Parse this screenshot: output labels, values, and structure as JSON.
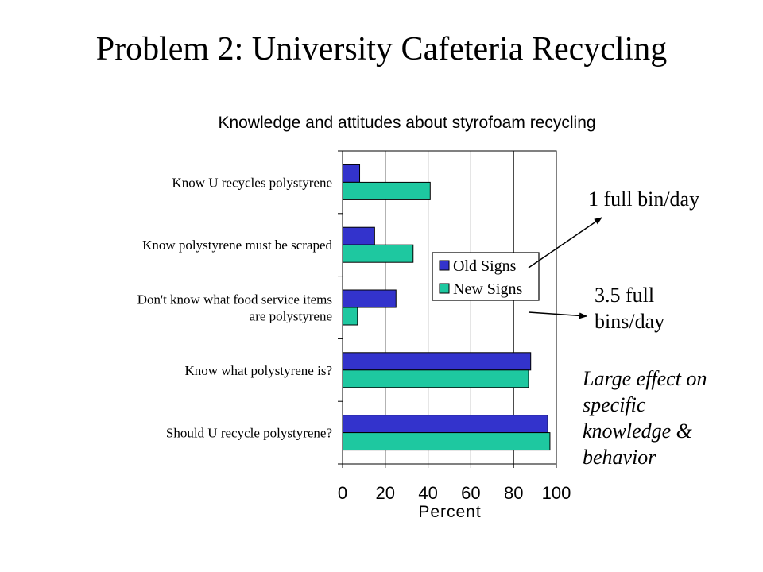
{
  "slide_title": "Problem 2: University Cafeteria Recycling",
  "chart_data": {
    "type": "bar",
    "orientation": "horizontal",
    "title": "Knowledge and attitudes about styrofoam recycling",
    "xlabel": "Percent",
    "ylabel": "",
    "xlim": [
      0,
      100
    ],
    "x_ticks": [
      "0",
      "20",
      "40",
      "60",
      "80",
      "100"
    ],
    "categories": [
      [
        "Know U recycles polystyrene"
      ],
      [
        "Know polystyrene must be scraped"
      ],
      [
        "Don't know what food service items",
        "are polystyrene"
      ],
      [
        "Know what polystyrene is?"
      ],
      [
        "Should U recycle polystyrene?"
      ]
    ],
    "series": [
      {
        "name": "Old Signs",
        "color": "#3333cc",
        "values": [
          8,
          15,
          25,
          88,
          96
        ]
      },
      {
        "name": "New Signs",
        "color": "#1ec8a0",
        "values": [
          41,
          33,
          7,
          87,
          97
        ]
      }
    ],
    "grid": "vertical",
    "legend_position": "center-right"
  },
  "annotations": {
    "note_1": "1 full bin/day",
    "note_2": "3.5 full bins/day",
    "note_3": "Large effect on specific knowledge & behavior"
  }
}
